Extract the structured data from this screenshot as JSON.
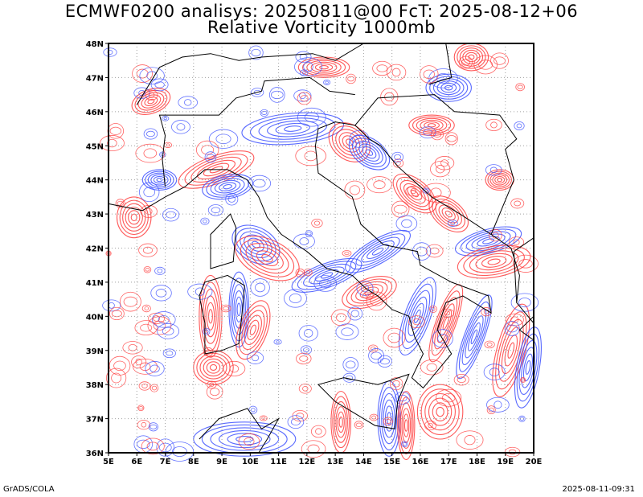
{
  "title_line1": "ECMWF0200 analisys: 20250811@00 FcT: 2025-08-12+06",
  "title_line2": "Relative Vorticity 1000mb",
  "footer_left": "GrADS/COLA",
  "footer_right": "2025-08-11-09:31",
  "lat_labels": [
    "48N",
    "47N",
    "46N",
    "45N",
    "44N",
    "43N",
    "42N",
    "41N",
    "40N",
    "39N",
    "38N",
    "37N",
    "36N"
  ],
  "lon_labels": [
    "5E",
    "6E",
    "7E",
    "8E",
    "9E",
    "10E",
    "11E",
    "12E",
    "13E",
    "14E",
    "15E",
    "16E",
    "17E",
    "18E",
    "19E",
    "20E"
  ],
  "colors": {
    "positive_vorticity": "#ff3c3c",
    "negative_vorticity": "#3c50ff",
    "zero_contour": "#c040c0",
    "coastline": "#000000",
    "grid": "#a0a0a0"
  }
}
